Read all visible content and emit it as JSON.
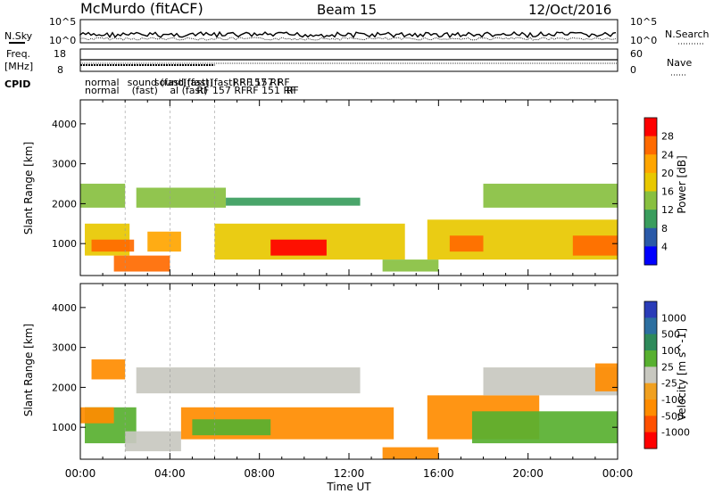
{
  "header": {
    "station": "McMurdo (fitACF)",
    "beam": "Beam 15",
    "date": "12/Oct/2016"
  },
  "top_panels": {
    "nsky_label": "N.Sky",
    "nsearch_label": "N.Search",
    "noise_tick_high": "10^5",
    "noise_tick_low": "10^0",
    "noise_tick_high_r": "10^5",
    "noise_tick_low_r": "10^0",
    "freq_label": "Freq.",
    "freq_unit": "[MHz]",
    "freq_ticks": [
      "18",
      "8"
    ],
    "nave_label": "Nave",
    "nave_ticks": [
      "60",
      "0"
    ],
    "cpid_label": "CPID",
    "cpid_labels": [
      {
        "text": "normal",
        "hour": 0.0,
        "row": 0
      },
      {
        "text": "normal",
        "hour": 0.0,
        "row": 1
      },
      {
        "text": "sound (fast)",
        "hour": 1.9,
        "row": 0
      },
      {
        "text": "(fast)",
        "hour": 2.1,
        "row": 1
      },
      {
        "text": "sound (fast)",
        "hour": 3.1,
        "row": 0
      },
      {
        "text": "al (fast)",
        "hour": 3.8,
        "row": 1
      },
      {
        "text": "(fast)",
        "hour": 4.4,
        "row": 0
      },
      {
        "text": "RF 157 RF",
        "hour": 5.0,
        "row": 1
      },
      {
        "text": "(fast) RF 157",
        "hour": 5.6,
        "row": 0
      },
      {
        "text": "RF 157 RF",
        "hour": 6.6,
        "row": 0
      },
      {
        "text": "RF 151 RF",
        "hour": 7.2,
        "row": 1
      },
      {
        "text": "RF",
        "hour": 8.6,
        "row": 0
      },
      {
        "text": "RF",
        "hour": 9.0,
        "row": 1
      }
    ]
  },
  "chart_data": [
    {
      "type": "heatmap",
      "name": "power",
      "ylabel": "Slant Range [km]",
      "yticks": [
        1000,
        2000,
        3000,
        4000
      ],
      "ylim": [
        200,
        4600
      ],
      "xlim": [
        0,
        24
      ],
      "colorbar_label": "Power [dB]",
      "colorbar_ticks": [
        "28",
        "24",
        "20",
        "16",
        "12",
        "8",
        "4"
      ],
      "colorbar_colors": [
        "#ff0000",
        "#ff6a00",
        "#ffa500",
        "#e8c800",
        "#88c040",
        "#3a9d5d",
        "#2a5aa8",
        "#0000ff"
      ],
      "regions": [
        {
          "x0": 0.0,
          "x1": 2.0,
          "y0": 1900,
          "y1": 2500,
          "level": 4
        },
        {
          "x0": 0.2,
          "x1": 2.2,
          "y0": 700,
          "y1": 1500,
          "level": 3
        },
        {
          "x0": 0.5,
          "x1": 2.4,
          "y0": 800,
          "y1": 1100,
          "level": 1
        },
        {
          "x0": 1.5,
          "x1": 4.0,
          "y0": 300,
          "y1": 700,
          "level": 1
        },
        {
          "x0": 2.5,
          "x1": 6.5,
          "y0": 1900,
          "y1": 2400,
          "level": 4
        },
        {
          "x0": 3.0,
          "x1": 4.5,
          "y0": 800,
          "y1": 1300,
          "level": 2
        },
        {
          "x0": 6.0,
          "x1": 14.5,
          "y0": 600,
          "y1": 1500,
          "level": 3
        },
        {
          "x0": 8.5,
          "x1": 11.0,
          "y0": 700,
          "y1": 1100,
          "level": 0
        },
        {
          "x0": 6.5,
          "x1": 12.5,
          "y0": 1950,
          "y1": 2150,
          "level": 5
        },
        {
          "x0": 13.5,
          "x1": 16.0,
          "y0": 300,
          "y1": 600,
          "level": 4
        },
        {
          "x0": 15.5,
          "x1": 24.0,
          "y0": 600,
          "y1": 1600,
          "level": 3
        },
        {
          "x0": 16.5,
          "x1": 18.0,
          "y0": 800,
          "y1": 1200,
          "level": 1
        },
        {
          "x0": 18.0,
          "x1": 24.0,
          "y0": 1900,
          "y1": 2500,
          "level": 4
        },
        {
          "x0": 22.0,
          "x1": 24.0,
          "y0": 700,
          "y1": 1200,
          "level": 1
        }
      ]
    },
    {
      "type": "heatmap",
      "name": "velocity",
      "ylabel": "Slant Range [km]",
      "yticks": [
        1000,
        2000,
        3000,
        4000
      ],
      "ylim": [
        200,
        4600
      ],
      "xlim": [
        0,
        24
      ],
      "xticks": [
        "00:00",
        "04:00",
        "08:00",
        "12:00",
        "16:00",
        "20:00",
        "00:00"
      ],
      "xlabel": "Time UT",
      "colorbar_label": "Velocity [m s^-1]",
      "colorbar_ticks": [
        "1000",
        "500",
        "100",
        "25",
        "-25",
        "-100",
        "-500",
        "-1000"
      ],
      "colorbar_colors": [
        "#2a3cb8",
        "#2c6fa0",
        "#2e8a5a",
        "#58b030",
        "#c8c8c0",
        "#f0a020",
        "#ff8c00",
        "#ff5000",
        "#ff0000"
      ],
      "regions": [
        {
          "x0": 0.5,
          "x1": 2.0,
          "y0": 2200,
          "y1": 2700,
          "level": 6
        },
        {
          "x0": 2.5,
          "x1": 12.5,
          "y0": 1850,
          "y1": 2500,
          "level": 4
        },
        {
          "x0": 0.2,
          "x1": 2.5,
          "y0": 600,
          "y1": 1500,
          "level": 3
        },
        {
          "x0": 0.0,
          "x1": 1.5,
          "y0": 1100,
          "y1": 1500,
          "level": 6
        },
        {
          "x0": 2.0,
          "x1": 4.5,
          "y0": 400,
          "y1": 900,
          "level": 4
        },
        {
          "x0": 4.5,
          "x1": 14.0,
          "y0": 700,
          "y1": 1500,
          "level": 6
        },
        {
          "x0": 5.0,
          "x1": 8.5,
          "y0": 800,
          "y1": 1200,
          "level": 3
        },
        {
          "x0": 13.5,
          "x1": 16.0,
          "y0": 200,
          "y1": 500,
          "level": 6
        },
        {
          "x0": 15.5,
          "x1": 20.5,
          "y0": 700,
          "y1": 1800,
          "level": 6
        },
        {
          "x0": 17.5,
          "x1": 24.0,
          "y0": 600,
          "y1": 1400,
          "level": 3
        },
        {
          "x0": 18.0,
          "x1": 24.0,
          "y0": 1800,
          "y1": 2500,
          "level": 4
        },
        {
          "x0": 23.0,
          "x1": 24.0,
          "y0": 1900,
          "y1": 2600,
          "level": 6
        }
      ]
    }
  ]
}
